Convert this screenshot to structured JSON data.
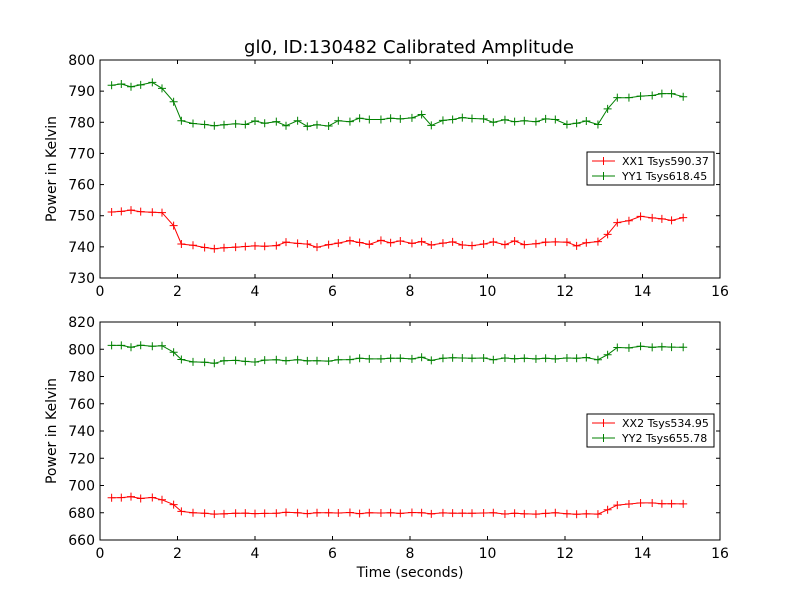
{
  "figure": {
    "title": "gl0, ID:130482 Calibrated Amplitude"
  },
  "chart_data": [
    {
      "type": "line",
      "title": "gl0, ID:130482 Calibrated Amplitude",
      "xlabel": "",
      "ylabel": "Power in Kelvin",
      "xlim": [
        0,
        16
      ],
      "ylim": [
        730,
        800
      ],
      "xticks": [
        0,
        2,
        4,
        6,
        8,
        10,
        12,
        14,
        16
      ],
      "yticks": [
        730,
        740,
        750,
        760,
        770,
        780,
        790,
        800
      ],
      "grid": false,
      "legend_position": "right",
      "x": [
        0.3,
        0.55,
        0.8,
        1.05,
        1.35,
        1.6,
        1.9,
        2.1,
        2.4,
        2.7,
        2.95,
        3.2,
        3.5,
        3.75,
        4.0,
        4.25,
        4.55,
        4.8,
        5.1,
        5.35,
        5.6,
        5.9,
        6.15,
        6.45,
        6.7,
        6.95,
        7.25,
        7.5,
        7.75,
        8.05,
        8.3,
        8.55,
        8.85,
        9.1,
        9.35,
        9.6,
        9.9,
        10.15,
        10.45,
        10.7,
        10.95,
        11.25,
        11.5,
        11.75,
        12.05,
        12.3,
        12.55,
        12.85,
        13.1,
        13.35,
        13.65,
        13.95,
        14.25,
        14.5,
        14.75,
        15.05
      ],
      "series": [
        {
          "name": "XX1 Tsys590.37",
          "color": "#ff0000",
          "values": [
            751.2,
            751.4,
            751.8,
            751.3,
            751.1,
            751.0,
            746.8,
            740.9,
            740.5,
            739.8,
            739.4,
            739.7,
            739.9,
            740.1,
            740.3,
            740.2,
            740.4,
            741.5,
            741.1,
            740.9,
            739.9,
            740.7,
            741.2,
            742.0,
            741.4,
            740.8,
            742.1,
            741.3,
            741.9,
            741.1,
            741.7,
            740.6,
            741.2,
            741.6,
            740.6,
            740.4,
            740.9,
            741.6,
            740.7,
            741.9,
            740.7,
            741.0,
            741.5,
            741.6,
            741.5,
            740.3,
            741.3,
            741.7,
            744.0,
            747.8,
            748.4,
            749.8,
            749.3,
            749.0,
            748.5,
            749.4
          ]
        },
        {
          "name": "YY1 Tsys618.45",
          "color": "#008000",
          "values": [
            791.9,
            792.3,
            791.4,
            792.0,
            792.8,
            790.9,
            786.6,
            780.5,
            779.6,
            779.3,
            778.9,
            779.2,
            779.5,
            779.3,
            780.4,
            779.7,
            780.2,
            778.9,
            780.5,
            778.7,
            779.2,
            778.8,
            780.5,
            780.2,
            781.3,
            780.9,
            780.9,
            781.3,
            781.1,
            781.4,
            782.5,
            779.0,
            780.6,
            780.9,
            781.5,
            781.2,
            781.1,
            780.0,
            780.8,
            780.2,
            780.5,
            780.2,
            781.1,
            780.9,
            779.3,
            779.7,
            780.4,
            779.3,
            784.3,
            787.9,
            787.9,
            788.4,
            788.6,
            789.2,
            789.2,
            788.2
          ]
        }
      ]
    },
    {
      "type": "line",
      "title": "",
      "xlabel": "Time (seconds)",
      "ylabel": "Power in Kelvin",
      "xlim": [
        0,
        16
      ],
      "ylim": [
        660,
        820
      ],
      "xticks": [
        0,
        2,
        4,
        6,
        8,
        10,
        12,
        14,
        16
      ],
      "yticks": [
        660,
        680,
        700,
        720,
        740,
        760,
        780,
        800,
        820
      ],
      "grid": false,
      "legend_position": "right",
      "x": [
        0.3,
        0.55,
        0.8,
        1.05,
        1.35,
        1.6,
        1.9,
        2.1,
        2.4,
        2.7,
        2.95,
        3.2,
        3.5,
        3.75,
        4.0,
        4.25,
        4.55,
        4.8,
        5.1,
        5.35,
        5.6,
        5.9,
        6.15,
        6.45,
        6.7,
        6.95,
        7.25,
        7.5,
        7.75,
        8.05,
        8.3,
        8.55,
        8.85,
        9.1,
        9.35,
        9.6,
        9.9,
        10.15,
        10.45,
        10.7,
        10.95,
        11.25,
        11.5,
        11.75,
        12.05,
        12.3,
        12.55,
        12.85,
        13.1,
        13.35,
        13.65,
        13.95,
        14.25,
        14.5,
        14.75,
        15.05
      ],
      "series": [
        {
          "name": "XX2 Tsys534.95",
          "color": "#ff0000",
          "values": [
            691.0,
            691.1,
            691.8,
            690.5,
            691.2,
            689.5,
            686.0,
            681.0,
            680.0,
            679.6,
            679.0,
            679.2,
            679.6,
            679.7,
            679.4,
            679.5,
            679.6,
            680.3,
            680.0,
            679.4,
            680.0,
            680.0,
            679.8,
            680.2,
            679.4,
            680.0,
            679.8,
            680.0,
            679.5,
            680.2,
            680.0,
            679.2,
            679.9,
            679.7,
            679.7,
            679.6,
            679.8,
            680.0,
            679.1,
            679.6,
            679.2,
            679.0,
            679.5,
            680.0,
            679.3,
            678.9,
            679.2,
            679.0,
            682.2,
            685.6,
            686.4,
            687.2,
            687.2,
            686.6,
            686.6,
            686.5
          ]
        },
        {
          "name": "YY2 Tsys655.78",
          "color": "#008000",
          "values": [
            802.8,
            802.8,
            801.5,
            802.9,
            802.2,
            802.6,
            797.8,
            792.5,
            790.7,
            790.5,
            789.7,
            791.6,
            791.8,
            791.1,
            790.6,
            792.0,
            792.3,
            791.6,
            792.3,
            791.5,
            791.6,
            791.3,
            792.3,
            792.4,
            793.4,
            792.9,
            792.9,
            793.4,
            793.4,
            792.9,
            794.1,
            791.8,
            793.4,
            793.8,
            793.6,
            793.4,
            793.6,
            792.3,
            793.6,
            793.0,
            793.4,
            792.9,
            793.4,
            792.9,
            793.6,
            793.4,
            793.9,
            792.3,
            796.0,
            801.3,
            801.0,
            802.2,
            801.4,
            801.8,
            801.6,
            801.5
          ]
        }
      ]
    }
  ]
}
